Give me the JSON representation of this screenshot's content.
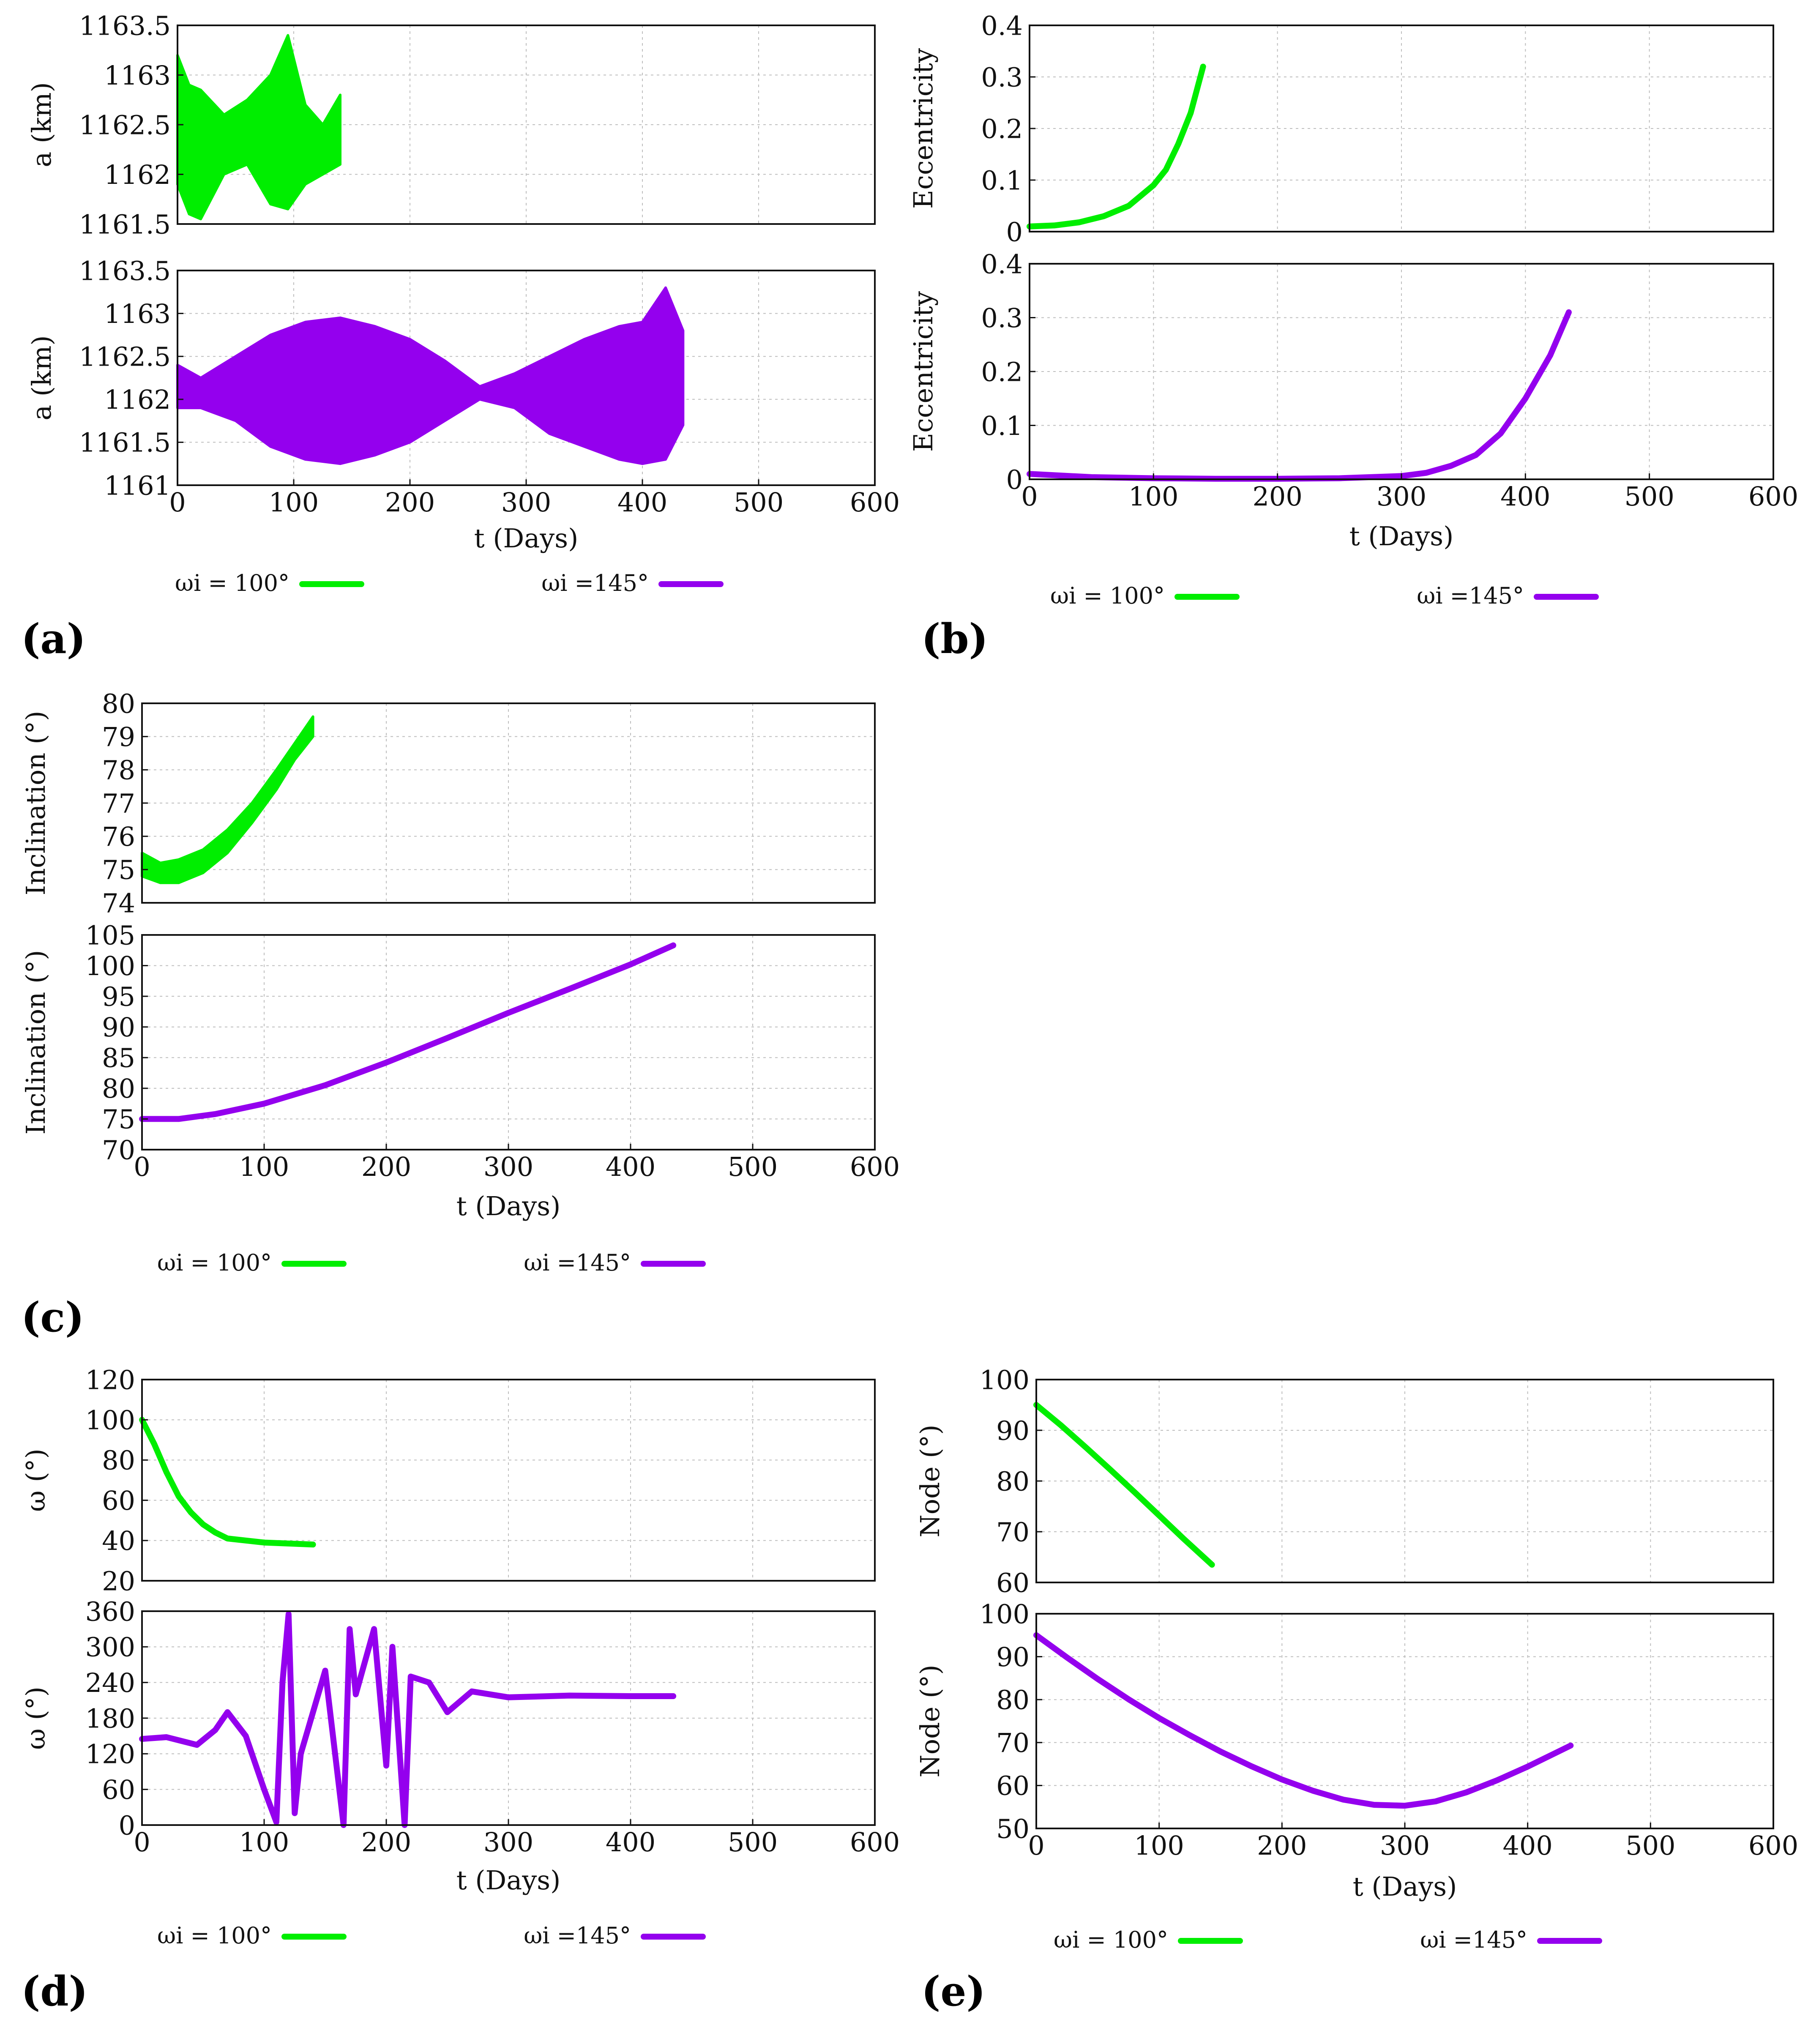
{
  "legend": {
    "green_label": "ωi = 100°",
    "purple_label": "ωi =145°",
    "green_color": "#00ee00",
    "purple_color": "#9400ee"
  },
  "panels": [
    {
      "id": "a",
      "label": "(a)",
      "xlabel": "t (Days)"
    },
    {
      "id": "b",
      "label": "(b)",
      "xlabel": "t (Days)"
    },
    {
      "id": "c",
      "label": "(c)",
      "xlabel": "t (Days)"
    },
    {
      "id": "d",
      "label": "(d)",
      "xlabel": "t (Days)"
    },
    {
      "id": "e",
      "label": "(e)",
      "xlabel": "t (Days)"
    }
  ],
  "chart_data": [
    {
      "panel": "a",
      "position": "top",
      "type": "line",
      "ylabel": "a (km)",
      "xlim": [
        0,
        600
      ],
      "ylim": [
        1161.5,
        1163.5
      ],
      "yticks": [
        "1161.5",
        "1162",
        "1162.5",
        "1163",
        "1163.5"
      ],
      "xticks": [],
      "grid": true,
      "series": [
        {
          "name": "ωi = 100°",
          "color": "#00ee00",
          "style": "band",
          "x": [
            0,
            10,
            20,
            40,
            60,
            80,
            95,
            110,
            125,
            140
          ],
          "upper": [
            1163.2,
            1162.9,
            1162.85,
            1162.6,
            1162.75,
            1163.0,
            1163.4,
            1162.7,
            1162.5,
            1162.8
          ],
          "lower": [
            1161.9,
            1161.6,
            1161.55,
            1162.0,
            1162.1,
            1161.7,
            1161.65,
            1161.9,
            1162.0,
            1162.1
          ]
        }
      ]
    },
    {
      "panel": "a",
      "position": "bottom",
      "type": "line",
      "ylabel": "a (km)",
      "xlim": [
        0,
        600
      ],
      "ylim": [
        1161,
        1163.5
      ],
      "yticks": [
        "1161",
        "1161.5",
        "1162",
        "1162.5",
        "1163",
        "1163.5"
      ],
      "xticks": [
        "0",
        "100",
        "200",
        "300",
        "400",
        "500",
        "600"
      ],
      "grid": true,
      "series": [
        {
          "name": "ωi =145°",
          "color": "#9400ee",
          "style": "band",
          "x": [
            0,
            20,
            50,
            80,
            110,
            140,
            170,
            200,
            230,
            260,
            290,
            320,
            350,
            380,
            400,
            420,
            435
          ],
          "upper": [
            1162.4,
            1162.25,
            1162.5,
            1162.75,
            1162.9,
            1162.95,
            1162.85,
            1162.7,
            1162.45,
            1162.15,
            1162.3,
            1162.5,
            1162.7,
            1162.85,
            1162.9,
            1163.3,
            1162.8
          ],
          "lower": [
            1161.9,
            1161.9,
            1161.75,
            1161.45,
            1161.3,
            1161.25,
            1161.35,
            1161.5,
            1161.75,
            1162.0,
            1161.9,
            1161.6,
            1161.45,
            1161.3,
            1161.25,
            1161.3,
            1161.7
          ]
        }
      ]
    },
    {
      "panel": "b",
      "position": "top",
      "type": "line",
      "ylabel": "Eccentricity",
      "xlim": [
        0,
        600
      ],
      "ylim": [
        0,
        0.4
      ],
      "yticks": [
        "0",
        "0.1",
        "0.2",
        "0.3",
        "0.4"
      ],
      "xticks": [],
      "grid": true,
      "series": [
        {
          "name": "ωi = 100°",
          "color": "#00ee00",
          "x": [
            0,
            20,
            40,
            60,
            80,
            100,
            110,
            120,
            130,
            140
          ],
          "y": [
            0.01,
            0.012,
            0.018,
            0.03,
            0.05,
            0.09,
            0.12,
            0.17,
            0.23,
            0.32
          ]
        }
      ]
    },
    {
      "panel": "b",
      "position": "bottom",
      "type": "line",
      "ylabel": "Eccentricity",
      "xlim": [
        0,
        600
      ],
      "ylim": [
        0,
        0.4
      ],
      "yticks": [
        "0",
        "0.1",
        "0.2",
        "0.3",
        "0.4"
      ],
      "xticks": [
        "0",
        "100",
        "200",
        "300",
        "400",
        "500",
        "600"
      ],
      "grid": true,
      "series": [
        {
          "name": "ωi =145°",
          "color": "#9400ee",
          "x": [
            0,
            50,
            100,
            150,
            200,
            250,
            300,
            320,
            340,
            360,
            380,
            400,
            420,
            435
          ],
          "y": [
            0.01,
            0.004,
            0.002,
            0.001,
            0.001,
            0.002,
            0.006,
            0.012,
            0.025,
            0.045,
            0.085,
            0.15,
            0.23,
            0.31
          ]
        }
      ]
    },
    {
      "panel": "c",
      "position": "top",
      "type": "line",
      "ylabel": "Inclination (°)",
      "xlim": [
        0,
        600
      ],
      "ylim": [
        74,
        80
      ],
      "yticks": [
        "74",
        "75",
        "76",
        "77",
        "78",
        "79",
        "80"
      ],
      "xticks": [],
      "grid": true,
      "series": [
        {
          "name": "ωi = 100°",
          "color": "#00ee00",
          "style": "band",
          "x": [
            0,
            15,
            30,
            50,
            70,
            90,
            110,
            125,
            140
          ],
          "upper": [
            75.5,
            75.2,
            75.3,
            75.6,
            76.2,
            77.0,
            78.0,
            78.8,
            79.6
          ],
          "lower": [
            74.8,
            74.6,
            74.6,
            74.9,
            75.5,
            76.4,
            77.4,
            78.3,
            79.0
          ]
        }
      ]
    },
    {
      "panel": "c",
      "position": "bottom",
      "type": "line",
      "ylabel": "Inclination (°)",
      "xlim": [
        0,
        600
      ],
      "ylim": [
        70,
        105
      ],
      "yticks": [
        "70",
        "75",
        "80",
        "85",
        "90",
        "95",
        "100",
        "105"
      ],
      "xticks": [
        "0",
        "100",
        "200",
        "300",
        "400",
        "500",
        "600"
      ],
      "grid": true,
      "series": [
        {
          "name": "ωi =145°",
          "color": "#9400ee",
          "x": [
            0,
            30,
            60,
            100,
            150,
            200,
            250,
            300,
            350,
            400,
            435
          ],
          "y": [
            75,
            75,
            75.8,
            77.5,
            80.5,
            84.2,
            88.2,
            92.3,
            96.2,
            100.2,
            103.3
          ]
        }
      ]
    },
    {
      "panel": "d",
      "position": "top",
      "type": "line",
      "ylabel": "ω (°)",
      "xlim": [
        0,
        600
      ],
      "ylim": [
        20,
        120
      ],
      "yticks": [
        "20",
        "40",
        "60",
        "80",
        "100",
        "120"
      ],
      "xticks": [],
      "grid": true,
      "series": [
        {
          "name": "ωi = 100°",
          "color": "#00ee00",
          "x": [
            0,
            10,
            20,
            30,
            40,
            50,
            60,
            70,
            85,
            100,
            120,
            140
          ],
          "y": [
            100,
            88,
            74,
            62,
            54,
            48,
            44,
            41,
            40,
            39,
            38.5,
            38
          ]
        }
      ]
    },
    {
      "panel": "d",
      "position": "bottom",
      "type": "line",
      "ylabel": "ω (°)",
      "xlim": [
        0,
        600
      ],
      "ylim": [
        0,
        360
      ],
      "yticks": [
        "0",
        "60",
        "120",
        "180",
        "240",
        "300",
        "360"
      ],
      "xticks": [
        "0",
        "100",
        "200",
        "300",
        "400",
        "500",
        "600"
      ],
      "grid": true,
      "series": [
        {
          "name": "ωi =145°",
          "color": "#9400ee",
          "x": [
            0,
            20,
            45,
            60,
            70,
            85,
            100,
            110,
            115,
            120,
            125,
            130,
            150,
            165,
            170,
            175,
            190,
            200,
            205,
            215,
            220,
            235,
            250,
            270,
            300,
            350,
            400,
            435
          ],
          "y": [
            145,
            148,
            135,
            160,
            190,
            150,
            60,
            5,
            240,
            355,
            20,
            120,
            260,
            0,
            330,
            220,
            330,
            100,
            300,
            0,
            250,
            240,
            190,
            225,
            215,
            218,
            217,
            217
          ]
        }
      ]
    },
    {
      "panel": "e",
      "position": "top",
      "type": "line",
      "ylabel": "Node (°)",
      "xlim": [
        0,
        600
      ],
      "ylim": [
        60,
        100
      ],
      "yticks": [
        "60",
        "70",
        "80",
        "90",
        "100"
      ],
      "xticks": [],
      "grid": true,
      "series": [
        {
          "name": "ωi = 100°",
          "color": "#00ee00",
          "x": [
            0,
            20,
            40,
            60,
            80,
            100,
            120,
            143
          ],
          "y": [
            95,
            91,
            86.7,
            82.3,
            77.8,
            73.2,
            68.6,
            63.5
          ]
        }
      ]
    },
    {
      "panel": "e",
      "position": "bottom",
      "type": "line",
      "ylabel": "Node (°)",
      "xlim": [
        0,
        600
      ],
      "ylim": [
        50,
        100
      ],
      "yticks": [
        "50",
        "60",
        "70",
        "80",
        "90",
        "100"
      ],
      "xticks": [
        "0",
        "100",
        "200",
        "300",
        "400",
        "500",
        "600"
      ],
      "grid": true,
      "series": [
        {
          "name": "ωi =145°",
          "color": "#9400ee",
          "x": [
            0,
            25,
            50,
            75,
            100,
            125,
            150,
            175,
            200,
            225,
            250,
            275,
            300,
            325,
            350,
            375,
            400,
            435
          ],
          "y": [
            95,
            89.8,
            84.8,
            80.1,
            75.7,
            71.7,
            67.9,
            64.5,
            61.4,
            58.8,
            56.7,
            55.5,
            55.3,
            56.3,
            58.4,
            61.2,
            64.4,
            69.3
          ]
        }
      ]
    }
  ]
}
